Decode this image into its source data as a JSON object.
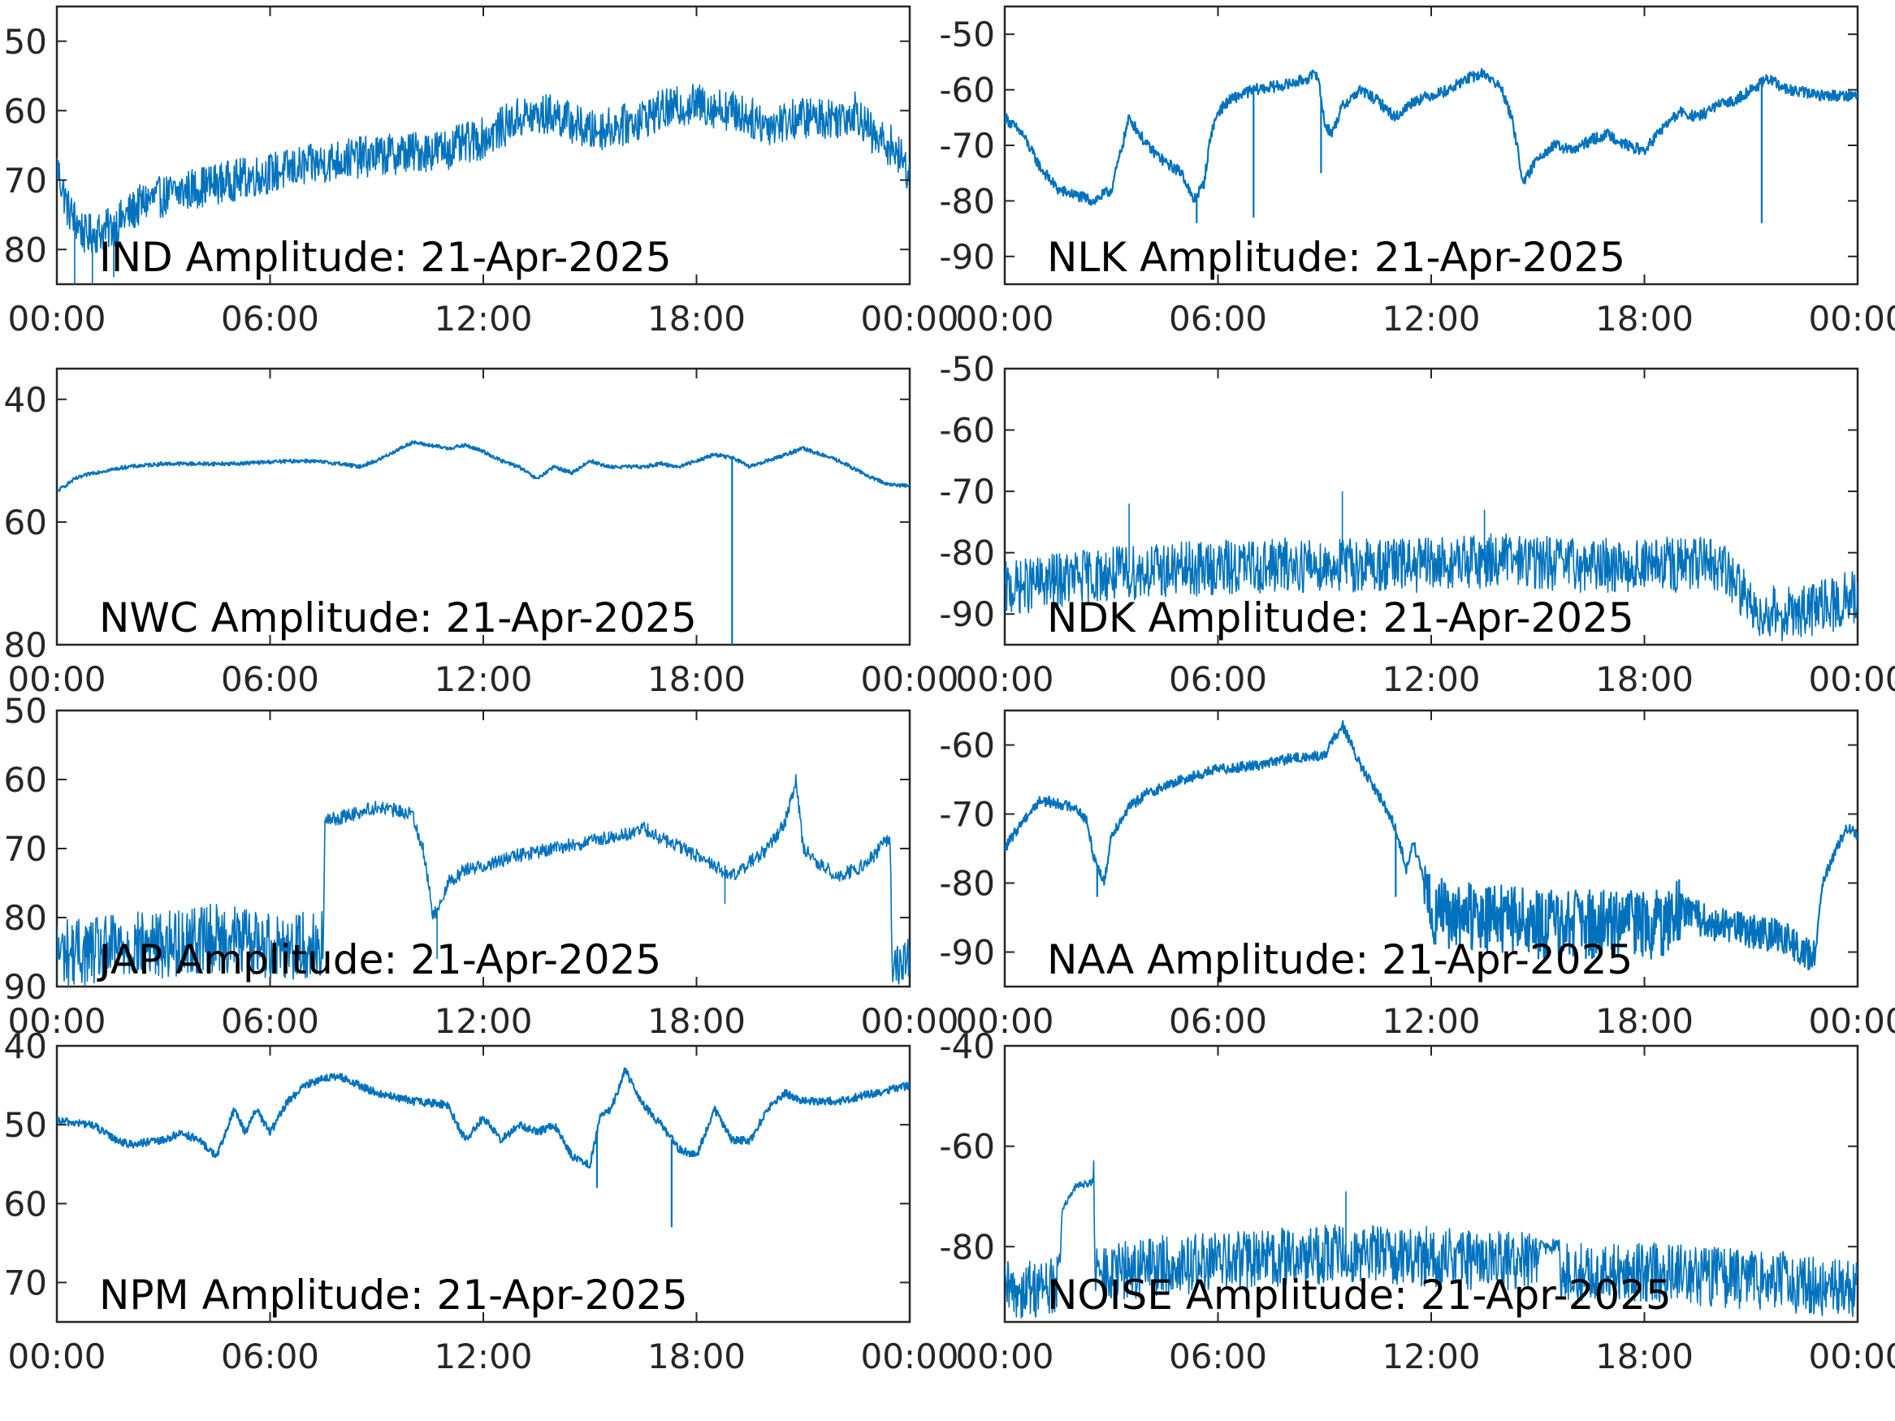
{
  "figure": {
    "line_color": "#0072BD",
    "axis_color": "#262626",
    "background": "#ffffff"
  },
  "chart_data": [
    {
      "type": "line",
      "title": "IND Amplitude: 21-Apr-2025",
      "x_ticks": [
        "00:00",
        "06:00",
        "12:00",
        "18:00",
        "00:00"
      ],
      "x_range_hours": [
        0,
        24
      ],
      "ylim": [
        -85,
        -45
      ],
      "y_ticks": [
        -50,
        -60,
        -70,
        -80
      ],
      "y_tick_labels": [
        "50",
        "60",
        "70",
        "80"
      ],
      "noise": 6,
      "series": [
        {
          "x": [
            0,
            0.3,
            0.8,
            1.5,
            2.5,
            4,
            6,
            8,
            10,
            11,
            12,
            13,
            14,
            15,
            16,
            17,
            18,
            19,
            20,
            21,
            22,
            22.5,
            23,
            23.5,
            24
          ],
          "y": [
            -68,
            -74,
            -78,
            -77,
            -73,
            -71,
            -69,
            -67,
            -66,
            -65.5,
            -64,
            -61,
            -60.5,
            -63,
            -62,
            -60,
            -59,
            -60,
            -62,
            -61,
            -61,
            -60,
            -64,
            -65,
            -69
          ]
        }
      ],
      "spikes": [
        {
          "x": 0.5,
          "y": -85
        },
        {
          "x": 1.0,
          "y": -85
        },
        {
          "x": 1.6,
          "y": -84
        }
      ]
    },
    {
      "type": "line",
      "title": "NLK Amplitude: 21-Apr-2025",
      "x_ticks": [
        "00:00",
        "06:00",
        "12:00",
        "18:00",
        "00:00"
      ],
      "x_range_hours": [
        0,
        24
      ],
      "ylim": [
        -95,
        -45
      ],
      "y_ticks": [
        -50,
        -60,
        -70,
        -80,
        -90
      ],
      "y_tick_labels": [
        "-50",
        "-60",
        "-70",
        "-80",
        "-90"
      ],
      "noise": 2,
      "series": [
        {
          "x": [
            0,
            0.5,
            1,
            1.5,
            2,
            2.5,
            3,
            3.5,
            4,
            4.5,
            5,
            5.3,
            5.6,
            5.8,
            6,
            6.3,
            6.6,
            7,
            7.5,
            8,
            8.5,
            8.8,
            9,
            9.2,
            9.5,
            10,
            10.5,
            11,
            11.5,
            12,
            12.5,
            13,
            13.5,
            14,
            14.3,
            14.6,
            15,
            15.5,
            16,
            16.5,
            17,
            17.5,
            18,
            18.5,
            19,
            19.5,
            20,
            20.5,
            21,
            21.5,
            22,
            23,
            24
          ],
          "y": [
            -65,
            -68,
            -74,
            -78,
            -79,
            -80,
            -78,
            -65,
            -70,
            -73,
            -75,
            -80,
            -77,
            -68,
            -64,
            -62,
            -61,
            -60,
            -59.5,
            -59,
            -58,
            -57,
            -66,
            -68,
            -63,
            -60,
            -62,
            -65,
            -62,
            -61,
            -60,
            -58,
            -57,
            -60,
            -66,
            -77,
            -72,
            -70,
            -71,
            -69,
            -68,
            -70,
            -71,
            -67,
            -64,
            -65,
            -63,
            -62,
            -60,
            -58,
            -60,
            -61,
            -61
          ]
        }
      ],
      "spikes": [
        {
          "x": 5.4,
          "y": -84
        },
        {
          "x": 7.0,
          "y": -83
        },
        {
          "x": 8.9,
          "y": -75
        },
        {
          "x": 21.3,
          "y": -84
        }
      ]
    },
    {
      "type": "line",
      "title": "NWC Amplitude: 21-Apr-2025",
      "x_ticks": [
        "00:00",
        "06:00",
        "12:00",
        "18:00",
        "00:00"
      ],
      "x_range_hours": [
        0,
        24
      ],
      "ylim": [
        -80,
        -35
      ],
      "y_ticks": [
        -40,
        -60,
        -80
      ],
      "y_tick_labels": [
        "40",
        "60",
        "80"
      ],
      "noise": 0.6,
      "series": [
        {
          "x": [
            0,
            0.5,
            1,
            1.5,
            2,
            3,
            4,
            5,
            6,
            7,
            8,
            8.5,
            9,
            9.5,
            10,
            10.5,
            11,
            11.5,
            12,
            12.5,
            13,
            13.5,
            14,
            14.5,
            15,
            15.5,
            16,
            16.5,
            17,
            17.5,
            18,
            18.5,
            19,
            19.5,
            20,
            20.5,
            21,
            21.5,
            22,
            22.5,
            23,
            23.5,
            24
          ],
          "y": [
            -55,
            -53,
            -52,
            -51.5,
            -51,
            -50.5,
            -50.5,
            -50.5,
            -50.2,
            -50,
            -50.5,
            -51,
            -50,
            -48.5,
            -47,
            -47.5,
            -48,
            -47.5,
            -48.5,
            -50,
            -51,
            -53,
            -51,
            -52,
            -50,
            -51,
            -51,
            -51,
            -50.5,
            -51,
            -50,
            -49,
            -49.5,
            -51,
            -50,
            -49,
            -48,
            -49,
            -50,
            -51.5,
            -53,
            -54,
            -54
          ]
        }
      ],
      "spikes": [
        {
          "x": 19.0,
          "y": -80
        }
      ]
    },
    {
      "type": "line",
      "title": "NDK Amplitude: 21-Apr-2025",
      "x_ticks": [
        "00:00",
        "06:00",
        "12:00",
        "18:00",
        "00:00"
      ],
      "x_range_hours": [
        0,
        24
      ],
      "ylim": [
        -95,
        -50
      ],
      "y_ticks": [
        -50,
        -60,
        -70,
        -80,
        -90
      ],
      "y_tick_labels": [
        "-50",
        "-60",
        "-70",
        "-80",
        "-90"
      ],
      "noise": 9,
      "series": [
        {
          "x": [
            0,
            2,
            4,
            6,
            8,
            10,
            12,
            14,
            16,
            18,
            20,
            20.5,
            21,
            22,
            23,
            24
          ],
          "y": [
            -86,
            -84,
            -83,
            -82.5,
            -82,
            -82,
            -82,
            -81,
            -82,
            -82,
            -82,
            -84,
            -89,
            -90,
            -89,
            -87
          ]
        }
      ],
      "spikes": [
        {
          "x": 3.5,
          "y": -72
        },
        {
          "x": 9.5,
          "y": -70
        },
        {
          "x": 13.5,
          "y": -73
        }
      ]
    },
    {
      "type": "line",
      "title": "JAP Amplitude: 21-Apr-2025",
      "x_ticks": [
        "00:00",
        "06:00",
        "12:00",
        "18:00",
        "00:00"
      ],
      "x_range_hours": [
        0,
        24
      ],
      "ylim": [
        -90,
        -50
      ],
      "y_ticks": [
        -50,
        -60,
        -70,
        -80,
        -90
      ],
      "y_tick_labels": [
        "50",
        "60",
        "70",
        "80",
        "90"
      ],
      "noise": 10,
      "noise_segments": [
        {
          "x0": 7.55,
          "x1": 24,
          "noise": 2
        },
        {
          "x0": 23.45,
          "x1": 24,
          "noise": 6
        }
      ],
      "series": [
        {
          "x": [
            0,
            1,
            2,
            3,
            4,
            5,
            6,
            7,
            7.5,
            7.55,
            8,
            9,
            10,
            10.3,
            10.6,
            11,
            11.5,
            12,
            13,
            14,
            15,
            16,
            16.5,
            17,
            18,
            19,
            19.5,
            20,
            20.5,
            20.8,
            21,
            21.5,
            22,
            22.5,
            23,
            23.3,
            23.45,
            23.5,
            24
          ],
          "y": [
            -85,
            -85,
            -84,
            -84,
            -83,
            -83,
            -84,
            -84,
            -84,
            -66,
            -65.5,
            -64,
            -65,
            -70,
            -80,
            -75,
            -73,
            -72.5,
            -71,
            -70,
            -69,
            -68,
            -67,
            -68.5,
            -71,
            -74,
            -72,
            -70,
            -66,
            -60,
            -70,
            -72.5,
            -74,
            -73,
            -71,
            -69,
            -69,
            -87,
            -86
          ]
        }
      ],
      "spikes": [
        {
          "x": 10.7,
          "y": -86
        },
        {
          "x": 18.8,
          "y": -78
        }
      ]
    },
    {
      "type": "line",
      "title": "NAA Amplitude: 21-Apr-2025",
      "x_ticks": [
        "00:00",
        "06:00",
        "12:00",
        "18:00",
        "00:00"
      ],
      "x_range_hours": [
        0,
        24
      ],
      "ylim": [
        -95,
        -55
      ],
      "y_ticks": [
        -60,
        -70,
        -80,
        -90
      ],
      "y_tick_labels": [
        "-60",
        "-70",
        "-80",
        "-90"
      ],
      "noise": 1.5,
      "noise_segments": [
        {
          "x0": 11.8,
          "x1": 19.0,
          "noise": 10
        },
        {
          "x0": 19.0,
          "x1": 22.8,
          "noise": 5
        }
      ],
      "series": [
        {
          "x": [
            0,
            0.5,
            1,
            1.5,
            2,
            2.3,
            2.5,
            2.8,
            3,
            3.5,
            4,
            5,
            6,
            7,
            8,
            9,
            9.5,
            10,
            10.5,
            11,
            11.3,
            11.5,
            11.8,
            12,
            13,
            14,
            15,
            16,
            17,
            18,
            18.5,
            19,
            19.5,
            20,
            20.5,
            21,
            22,
            22.5,
            22.8,
            23,
            23.5,
            23.7,
            24
          ],
          "y": [
            -75,
            -71,
            -68,
            -68.5,
            -69,
            -71,
            -76,
            -80,
            -73,
            -69,
            -67,
            -65,
            -63.5,
            -63,
            -62,
            -61.5,
            -57,
            -63,
            -67,
            -72,
            -78,
            -74,
            -80,
            -84,
            -85,
            -85,
            -86,
            -86,
            -86,
            -86,
            -86,
            -84,
            -85,
            -86,
            -86,
            -87,
            -88,
            -90,
            -91,
            -80,
            -74,
            -72,
            -73
          ]
        }
      ],
      "spikes": [
        {
          "x": 2.6,
          "y": -82
        },
        {
          "x": 11.0,
          "y": -82
        }
      ]
    },
    {
      "type": "line",
      "title": "NPM Amplitude: 21-Apr-2025",
      "x_ticks": [
        "00:00",
        "06:00",
        "12:00",
        "18:00",
        "00:00"
      ],
      "x_range_hours": [
        0,
        24
      ],
      "ylim": [
        -75,
        -40
      ],
      "y_ticks": [
        -40,
        -50,
        -60,
        -70
      ],
      "y_tick_labels": [
        "40",
        "50",
        "60",
        "70"
      ],
      "noise": 1,
      "series": [
        {
          "x": [
            0,
            1,
            1.5,
            2,
            3,
            3.5,
            4,
            4.5,
            5,
            5.3,
            5.6,
            6,
            6.5,
            7,
            7.5,
            8,
            8.5,
            9,
            10,
            11,
            11.5,
            12,
            12.5,
            13,
            13.5,
            14,
            14.5,
            15,
            15.3,
            15.6,
            16,
            16.3,
            16.6,
            17,
            17.5,
            18,
            18.5,
            19,
            19.5,
            20,
            20.5,
            21,
            22,
            23,
            24
          ],
          "y": [
            -49.5,
            -50,
            -51.5,
            -52.5,
            -52,
            -51,
            -52,
            -54,
            -48,
            -51,
            -48,
            -51,
            -47,
            -45,
            -44,
            -44,
            -45,
            -46,
            -47,
            -47.5,
            -52,
            -49,
            -52,
            -50,
            -51,
            -50,
            -54,
            -55,
            -49,
            -48,
            -43,
            -46,
            -48,
            -50,
            -53,
            -54,
            -48,
            -52,
            -52,
            -48,
            -46,
            -47,
            -47,
            -46,
            -45
          ]
        }
      ],
      "spikes": [
        {
          "x": 15.2,
          "y": -58
        },
        {
          "x": 17.3,
          "y": -63
        }
      ]
    },
    {
      "type": "line",
      "title": "NOISE Amplitude: 21-Apr-2025",
      "x_ticks": [
        "00:00",
        "06:00",
        "12:00",
        "18:00",
        "00:00"
      ],
      "x_range_hours": [
        0,
        24
      ],
      "ylim": [
        -95,
        -40
      ],
      "y_ticks": [
        -40,
        -60,
        -80
      ],
      "y_tick_labels": [
        "-40",
        "-60",
        "-80"
      ],
      "noise": 12,
      "noise_segments": [
        {
          "x0": 1.6,
          "x1": 2.5,
          "noise": 1.5
        },
        {
          "x0": 15.0,
          "x1": 15.6,
          "noise": 3
        }
      ],
      "series": [
        {
          "x": [
            0,
            1,
            1.5,
            1.6,
            2.0,
            2.5,
            2.55,
            4,
            6,
            8,
            10,
            12,
            14,
            15.0,
            15.05,
            15.6,
            15.65,
            18,
            20,
            22,
            24
          ],
          "y": [
            -89,
            -88,
            -88,
            -73,
            -68,
            -67,
            -86,
            -84,
            -83,
            -82,
            -81,
            -82,
            -83,
            -83,
            -80,
            -80,
            -85,
            -85,
            -86,
            -87,
            -89
          ]
        }
      ],
      "spikes": [
        {
          "x": 9.6,
          "y": -69
        }
      ]
    }
  ]
}
